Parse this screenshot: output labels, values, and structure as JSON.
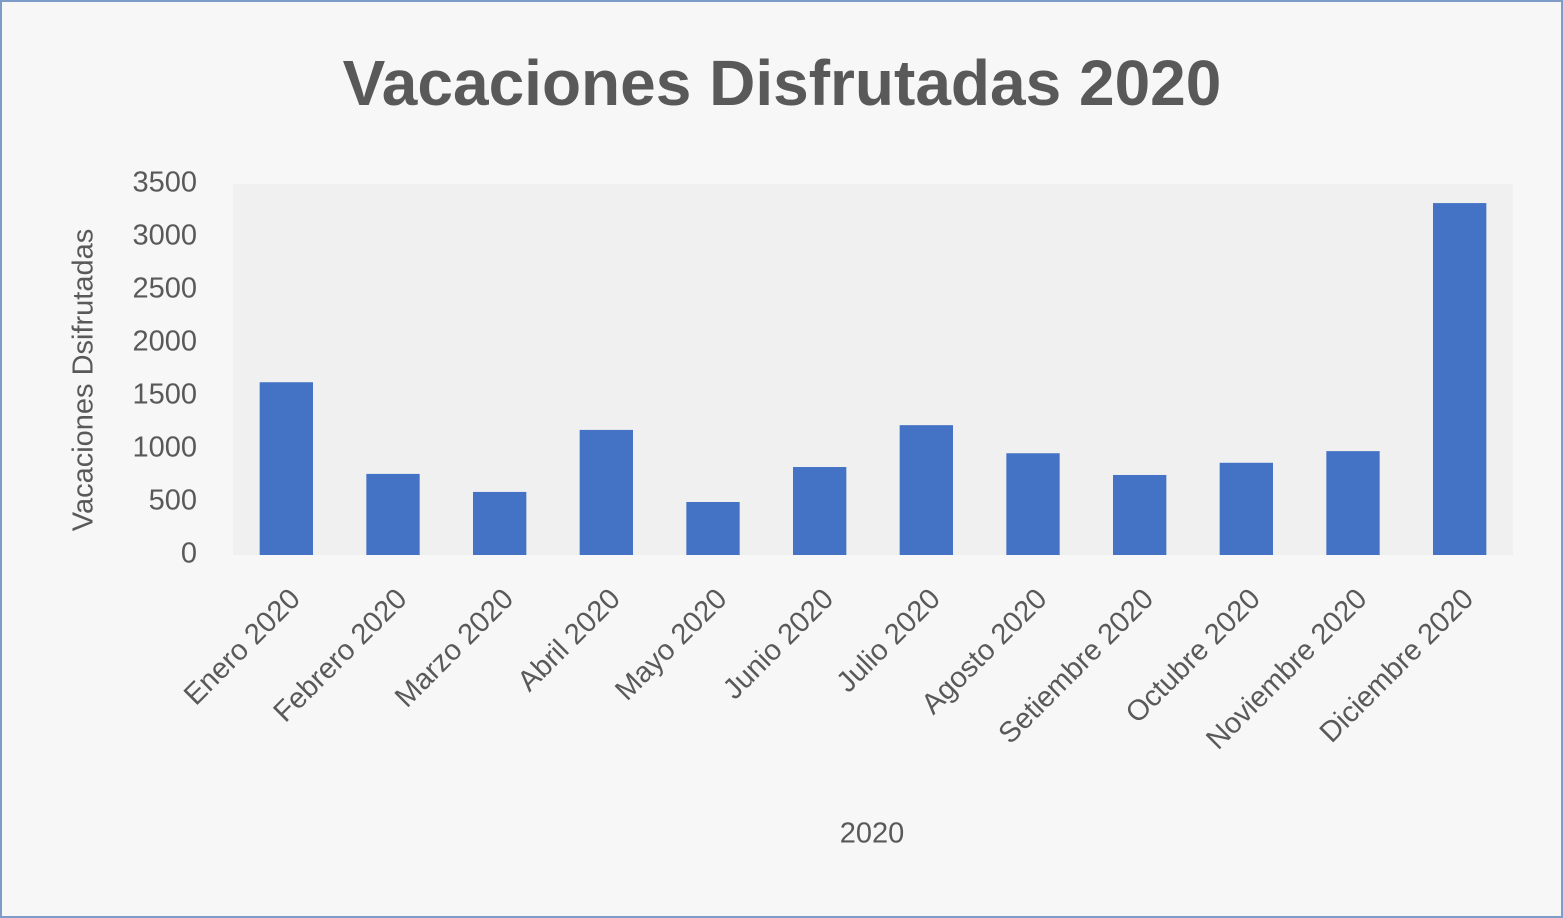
{
  "chart_data": {
    "type": "bar",
    "title": "Vacaciones Disfrutadas 2020",
    "x_label": "2020",
    "y_label": "Vacaciones Dsifrutadas",
    "categories": [
      "Enero 2020",
      "Febrero 2020",
      "Marzo 2020",
      "Abril 2020",
      "Mayo 2020",
      "Junio 2020",
      "Julio 2020",
      "Agosto 2020",
      "Setiembre 2020",
      "Octubre 2020",
      "Noviembre 2020",
      "Diciembre 2020"
    ],
    "values": [
      1630,
      765,
      595,
      1180,
      500,
      830,
      1225,
      960,
      755,
      870,
      980,
      3320
    ],
    "color": "#4472c4",
    "ylim": [
      0,
      3500
    ],
    "yticks": [
      0,
      500,
      1000,
      1500,
      2000,
      2500,
      3000,
      3500
    ],
    "grid": false
  }
}
